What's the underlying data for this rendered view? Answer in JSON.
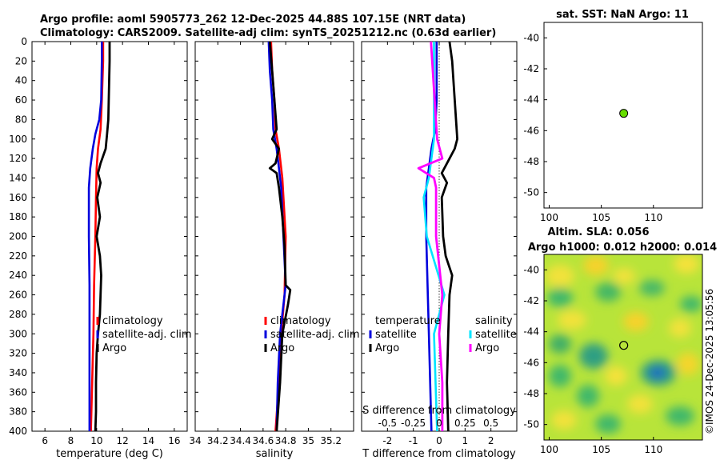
{
  "header": {
    "line1": "Argo profile: aoml 5905773_262 12-Dec-2025 44.88S 107.15E (NRT data)",
    "line2": "Climatology: CARS2009. Satellite-adj clim: synTS_20251212.nc (0.63d earlier)"
  },
  "colors": {
    "climatology": "#ff0000",
    "satellite": "#0000dd",
    "argo": "#000000",
    "sat_salinity": "#00e5ff",
    "argo_salinity": "#ff00ff",
    "marker": "#66dd00"
  },
  "chart_data": [
    {
      "type": "line",
      "id": "temperature",
      "xlabel": "temperature (deg C)",
      "xlim": [
        5,
        17
      ],
      "xticks": [
        6,
        8,
        10,
        12,
        14,
        16
      ],
      "ylim": [
        0,
        400
      ],
      "yticks": [
        0,
        20,
        40,
        60,
        80,
        100,
        120,
        140,
        160,
        180,
        200,
        220,
        240,
        260,
        280,
        300,
        320,
        340,
        360,
        380,
        400
      ],
      "legend": [
        "climatology",
        "satellite-adj. clim",
        "Argo"
      ],
      "series": [
        {
          "name": "climatology",
          "color": "#ff0000",
          "depth": [
            0,
            20,
            60,
            90,
            110,
            130,
            160,
            200,
            250,
            300,
            350,
            400
          ],
          "values": [
            10.5,
            10.5,
            10.4,
            10.3,
            10.1,
            10.0,
            9.95,
            9.9,
            9.8,
            9.75,
            9.65,
            9.55
          ]
        },
        {
          "name": "satellite-adj. clim",
          "color": "#0000dd",
          "depth": [
            0,
            20,
            60,
            80,
            95,
            110,
            130,
            150,
            170,
            200,
            250,
            300,
            350,
            400
          ],
          "values": [
            10.4,
            10.4,
            10.35,
            10.2,
            9.9,
            9.7,
            9.5,
            9.4,
            9.4,
            9.4,
            9.45,
            9.45,
            9.45,
            9.45
          ]
        },
        {
          "name": "Argo",
          "color": "#000000",
          "depth": [
            0,
            20,
            50,
            80,
            95,
            110,
            125,
            135,
            145,
            160,
            180,
            200,
            220,
            240,
            260,
            280,
            300,
            320,
            350,
            380,
            400
          ],
          "values": [
            11.0,
            11.0,
            10.95,
            10.9,
            10.8,
            10.7,
            10.3,
            10.1,
            10.3,
            10.05,
            10.25,
            10.0,
            10.25,
            10.35,
            10.3,
            10.25,
            10.1,
            10.0,
            9.95,
            9.95,
            9.9
          ]
        }
      ]
    },
    {
      "type": "line",
      "id": "salinity",
      "xlabel": "salinity",
      "xlim": [
        34,
        35.4
      ],
      "xticks": [
        34,
        34.2,
        34.4,
        34.6,
        34.8,
        35,
        35.2
      ],
      "ylim": [
        0,
        400
      ],
      "legend": [
        "climatology",
        "satellite-adj. clim",
        "Argo"
      ],
      "series": [
        {
          "name": "climatology",
          "color": "#ff0000",
          "depth": [
            0,
            30,
            60,
            90,
            110,
            140,
            200,
            260,
            300,
            350,
            400
          ],
          "values": [
            34.67,
            34.68,
            34.7,
            34.71,
            34.74,
            34.77,
            34.8,
            34.79,
            34.76,
            34.74,
            34.71
          ]
        },
        {
          "name": "satellite-adj. clim",
          "color": "#0000dd",
          "depth": [
            0,
            30,
            60,
            90,
            110,
            130,
            150,
            200,
            250,
            300,
            350,
            400
          ],
          "values": [
            34.65,
            34.66,
            34.68,
            34.69,
            34.72,
            34.74,
            34.76,
            34.78,
            34.8,
            34.75,
            34.73,
            34.72
          ]
        },
        {
          "name": "Argo",
          "color": "#000000",
          "depth": [
            0,
            30,
            60,
            90,
            100,
            110,
            125,
            130,
            135,
            150,
            180,
            210,
            250,
            255,
            270,
            300,
            350,
            400
          ],
          "values": [
            34.66,
            34.68,
            34.7,
            34.72,
            34.68,
            34.74,
            34.71,
            34.66,
            34.72,
            34.74,
            34.77,
            34.79,
            34.8,
            34.84,
            34.82,
            34.77,
            34.75,
            34.72
          ]
        }
      ]
    },
    {
      "type": "line",
      "id": "difference",
      "xlabel": "T difference from climatology",
      "xlabel_top": "S difference from climatology",
      "xlim": [
        -3,
        3
      ],
      "xticks": [
        -2,
        -1,
        0,
        1,
        2
      ],
      "xticks_top": [
        "-0.5",
        "-0.25",
        "0",
        "0.25",
        "0.5"
      ],
      "ylim": [
        0,
        400
      ],
      "legend_temperature": [
        "temperature",
        "satellite",
        "Argo"
      ],
      "legend_salinity": [
        "salinity",
        "satellite",
        "Argo"
      ],
      "series": [
        {
          "name": "T satellite",
          "color": "#0000dd",
          "depth": [
            0,
            60,
            90,
            110,
            130,
            150,
            200,
            300,
            400
          ],
          "values": [
            -0.1,
            -0.1,
            -0.15,
            -0.3,
            -0.4,
            -0.5,
            -0.5,
            -0.4,
            -0.3
          ]
        },
        {
          "name": "T Argo",
          "color": "#000000",
          "depth": [
            0,
            20,
            60,
            80,
            100,
            110,
            125,
            135,
            145,
            160,
            200,
            220,
            240,
            260,
            300,
            350,
            400
          ],
          "values": [
            0.4,
            0.5,
            0.6,
            0.65,
            0.7,
            0.6,
            0.3,
            0.1,
            0.3,
            0.1,
            0.15,
            0.25,
            0.5,
            0.4,
            0.35,
            0.3,
            0.35
          ]
        },
        {
          "name": "S satellite",
          "color": "#00e5ff",
          "depth": [
            0,
            100,
            140,
            160,
            200,
            260,
            300,
            400
          ],
          "values": [
            -0.05,
            -0.05,
            -0.1,
            -0.15,
            -0.12,
            0.05,
            -0.05,
            -0.02
          ]
        },
        {
          "name": "S Argo",
          "color": "#ff00ff",
          "depth": [
            0,
            100,
            120,
            130,
            140,
            150,
            200,
            260,
            300,
            350,
            400
          ],
          "values": [
            -0.08,
            -0.02,
            0.03,
            -0.2,
            -0.05,
            -0.03,
            -0.03,
            0.03,
            0.0,
            0.03,
            0.03
          ]
        }
      ]
    },
    {
      "type": "scatter",
      "id": "sst_map",
      "title": "sat. SST: NaN Argo: 11",
      "xlim": [
        99.5,
        114.7
      ],
      "ylim": [
        -51,
        -39
      ],
      "xticks": [
        100,
        105,
        110
      ],
      "yticks": [
        -40,
        -42,
        -44,
        -46,
        -48,
        -50
      ],
      "points": [
        {
          "x": 107.15,
          "y": -44.88
        }
      ]
    },
    {
      "type": "heatmap",
      "id": "sla_map",
      "title_line1": "Altim. SLA: 0.056",
      "title_line2": "Argo h1000: 0.012 h2000: 0.014",
      "xlim": [
        99.5,
        114.7
      ],
      "ylim": [
        -51,
        -39
      ],
      "xticks": [
        100,
        105,
        110
      ],
      "yticks": [
        -40,
        -42,
        -44,
        -46,
        -48,
        -50
      ],
      "points": [
        {
          "x": 107.15,
          "y": -44.88
        }
      ],
      "stamp": "©IMOS 24-Dec-2025 13:05:56"
    }
  ]
}
